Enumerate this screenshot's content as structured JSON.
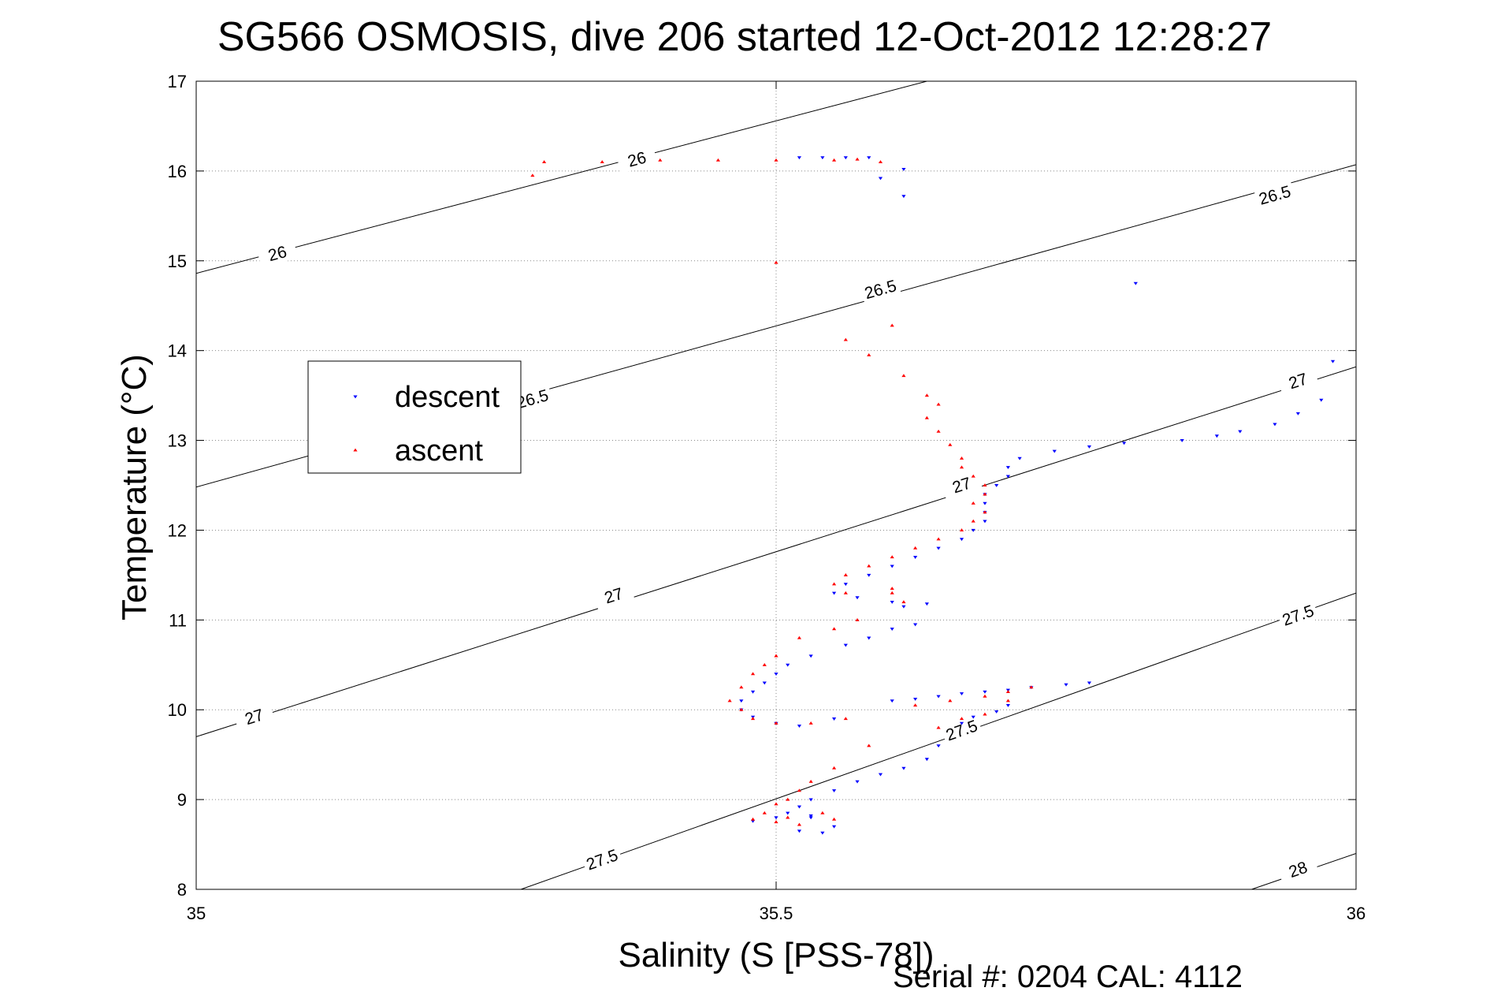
{
  "chart_data": {
    "type": "scatter",
    "title": "SG566 OSMOSIS, dive 206 started 12-Oct-2012 12:28:27",
    "xlabel": "Salinity (S [PSS-78])",
    "ylabel": "Temperature (°C)",
    "xlim": [
      35,
      36
    ],
    "ylim": [
      8,
      17
    ],
    "x_ticks": [
      "35",
      "35.5",
      "36"
    ],
    "y_ticks": [
      "8",
      "9",
      "10",
      "11",
      "12",
      "13",
      "14",
      "15",
      "16",
      "17"
    ],
    "grid": true,
    "legend_position": "left",
    "footer": "Serial #: 0204  CAL: 4112",
    "series": [
      {
        "name": "descent",
        "color": "#0000ff",
        "marker": "triangle-down",
        "points": [
          [
            35.77,
            10.3
          ],
          [
            35.75,
            10.28
          ],
          [
            35.72,
            10.25
          ],
          [
            35.7,
            10.22
          ],
          [
            35.68,
            10.2
          ],
          [
            35.66,
            10.18
          ],
          [
            35.64,
            10.15
          ],
          [
            35.62,
            10.12
          ],
          [
            35.6,
            10.1
          ],
          [
            35.7,
            10.05
          ],
          [
            35.69,
            9.98
          ],
          [
            35.67,
            9.92
          ],
          [
            35.66,
            9.85
          ],
          [
            35.64,
            9.6
          ],
          [
            35.63,
            9.45
          ],
          [
            35.61,
            9.35
          ],
          [
            35.59,
            9.28
          ],
          [
            35.57,
            9.2
          ],
          [
            35.55,
            9.1
          ],
          [
            35.53,
            9.0
          ],
          [
            35.52,
            8.92
          ],
          [
            35.51,
            8.85
          ],
          [
            35.53,
            8.8
          ],
          [
            35.55,
            8.7
          ],
          [
            35.54,
            8.63
          ],
          [
            35.52,
            8.65
          ],
          [
            35.48,
            8.76
          ],
          [
            35.5,
            8.8
          ],
          [
            35.53,
            8.82
          ],
          [
            35.55,
            9.9
          ],
          [
            35.52,
            9.82
          ],
          [
            35.5,
            9.85
          ],
          [
            35.48,
            9.92
          ],
          [
            35.47,
            10.0
          ],
          [
            35.47,
            10.1
          ],
          [
            35.48,
            10.2
          ],
          [
            35.49,
            10.3
          ],
          [
            35.5,
            10.4
          ],
          [
            35.51,
            10.5
          ],
          [
            35.53,
            10.6
          ],
          [
            35.56,
            10.72
          ],
          [
            35.58,
            10.8
          ],
          [
            35.6,
            10.9
          ],
          [
            35.62,
            10.95
          ],
          [
            35.61,
            11.15
          ],
          [
            35.63,
            11.18
          ],
          [
            35.6,
            11.2
          ],
          [
            35.57,
            11.25
          ],
          [
            35.55,
            11.3
          ],
          [
            35.56,
            11.4
          ],
          [
            35.58,
            11.5
          ],
          [
            35.6,
            11.6
          ],
          [
            35.62,
            11.7
          ],
          [
            35.64,
            11.8
          ],
          [
            35.66,
            11.9
          ],
          [
            35.67,
            12.0
          ],
          [
            35.68,
            12.1
          ],
          [
            35.68,
            12.2
          ],
          [
            35.68,
            12.3
          ],
          [
            35.68,
            12.4
          ],
          [
            35.69,
            12.5
          ],
          [
            35.7,
            12.6
          ],
          [
            35.7,
            12.7
          ],
          [
            35.71,
            12.8
          ],
          [
            35.74,
            12.88
          ],
          [
            35.77,
            12.93
          ],
          [
            35.8,
            12.97
          ],
          [
            35.85,
            13.0
          ],
          [
            35.88,
            13.05
          ],
          [
            35.9,
            13.1
          ],
          [
            35.93,
            13.18
          ],
          [
            35.95,
            13.3
          ],
          [
            35.97,
            13.45
          ],
          [
            35.98,
            13.88
          ],
          [
            35.61,
            16.02
          ],
          [
            35.59,
            15.92
          ],
          [
            35.61,
            15.72
          ],
          [
            35.81,
            14.75
          ],
          [
            35.56,
            16.15
          ],
          [
            35.58,
            16.15
          ],
          [
            35.54,
            16.15
          ],
          [
            35.52,
            16.15
          ]
        ]
      },
      {
        "name": "ascent",
        "color": "#ff0000",
        "marker": "triangle-up",
        "points": [
          [
            35.3,
            16.1
          ],
          [
            35.35,
            16.1
          ],
          [
            35.4,
            16.12
          ],
          [
            35.45,
            16.12
          ],
          [
            35.5,
            16.12
          ],
          [
            35.55,
            16.12
          ],
          [
            35.57,
            16.13
          ],
          [
            35.59,
            16.1
          ],
          [
            35.29,
            15.95
          ],
          [
            35.5,
            14.98
          ],
          [
            35.56,
            14.12
          ],
          [
            35.58,
            13.95
          ],
          [
            35.6,
            14.28
          ],
          [
            35.61,
            13.72
          ],
          [
            35.63,
            13.5
          ],
          [
            35.64,
            13.4
          ],
          [
            35.63,
            13.25
          ],
          [
            35.64,
            13.1
          ],
          [
            35.65,
            12.95
          ],
          [
            35.66,
            12.8
          ],
          [
            35.66,
            12.7
          ],
          [
            35.67,
            12.6
          ],
          [
            35.68,
            12.5
          ],
          [
            35.68,
            12.4
          ],
          [
            35.67,
            12.3
          ],
          [
            35.68,
            12.2
          ],
          [
            35.67,
            12.1
          ],
          [
            35.66,
            12.0
          ],
          [
            35.64,
            11.9
          ],
          [
            35.62,
            11.8
          ],
          [
            35.6,
            11.7
          ],
          [
            35.58,
            11.6
          ],
          [
            35.56,
            11.5
          ],
          [
            35.55,
            11.4
          ],
          [
            35.56,
            11.3
          ],
          [
            35.6,
            11.3
          ],
          [
            35.61,
            11.2
          ],
          [
            35.6,
            11.35
          ],
          [
            35.57,
            11.0
          ],
          [
            35.55,
            10.9
          ],
          [
            35.52,
            10.8
          ],
          [
            35.5,
            10.6
          ],
          [
            35.49,
            10.5
          ],
          [
            35.48,
            10.4
          ],
          [
            35.47,
            10.25
          ],
          [
            35.46,
            10.1
          ],
          [
            35.47,
            10.0
          ],
          [
            35.48,
            9.9
          ],
          [
            35.5,
            9.85
          ],
          [
            35.53,
            9.85
          ],
          [
            35.56,
            9.9
          ],
          [
            35.62,
            10.05
          ],
          [
            35.65,
            10.1
          ],
          [
            35.68,
            10.15
          ],
          [
            35.7,
            10.2
          ],
          [
            35.72,
            10.25
          ],
          [
            35.7,
            10.1
          ],
          [
            35.68,
            9.95
          ],
          [
            35.66,
            9.9
          ],
          [
            35.64,
            9.8
          ],
          [
            35.58,
            9.6
          ],
          [
            35.55,
            9.35
          ],
          [
            35.53,
            9.2
          ],
          [
            35.52,
            9.1
          ],
          [
            35.51,
            9.0
          ],
          [
            35.5,
            8.95
          ],
          [
            35.49,
            8.85
          ],
          [
            35.48,
            8.78
          ],
          [
            35.5,
            8.75
          ],
          [
            35.52,
            8.72
          ],
          [
            35.55,
            8.78
          ],
          [
            35.54,
            8.85
          ],
          [
            35.51,
            8.8
          ]
        ]
      }
    ],
    "contours": [
      {
        "label": "26",
        "points": [
          [
            35,
            14.86
          ],
          [
            35.63,
            17.0
          ]
        ],
        "labels_at": [
          [
            35.07,
            15.08
          ],
          [
            35.38,
            16.13
          ]
        ]
      },
      {
        "label": "26.5",
        "points": [
          [
            35,
            12.48
          ],
          [
            36,
            16.07
          ]
        ],
        "labels_at": [
          [
            35.29,
            13.46
          ],
          [
            35.59,
            14.68
          ],
          [
            35.93,
            15.73
          ]
        ]
      },
      {
        "label": "27",
        "points": [
          [
            35,
            9.7
          ],
          [
            36,
            13.82
          ]
        ],
        "labels_at": [
          [
            35.05,
            9.92
          ],
          [
            35.36,
            11.27
          ],
          [
            35.66,
            12.5
          ],
          [
            35.95,
            13.66
          ]
        ]
      },
      {
        "label": "27.5",
        "points": [
          [
            35.28,
            8.0
          ],
          [
            36,
            11.3
          ]
        ],
        "labels_at": [
          [
            35.35,
            8.33
          ],
          [
            35.66,
            9.77
          ],
          [
            35.95,
            11.05
          ]
        ]
      },
      {
        "label": "28",
        "points": [
          [
            35.91,
            8.0
          ],
          [
            36,
            8.4
          ]
        ],
        "labels_at": [
          [
            35.95,
            8.22
          ]
        ]
      }
    ]
  }
}
